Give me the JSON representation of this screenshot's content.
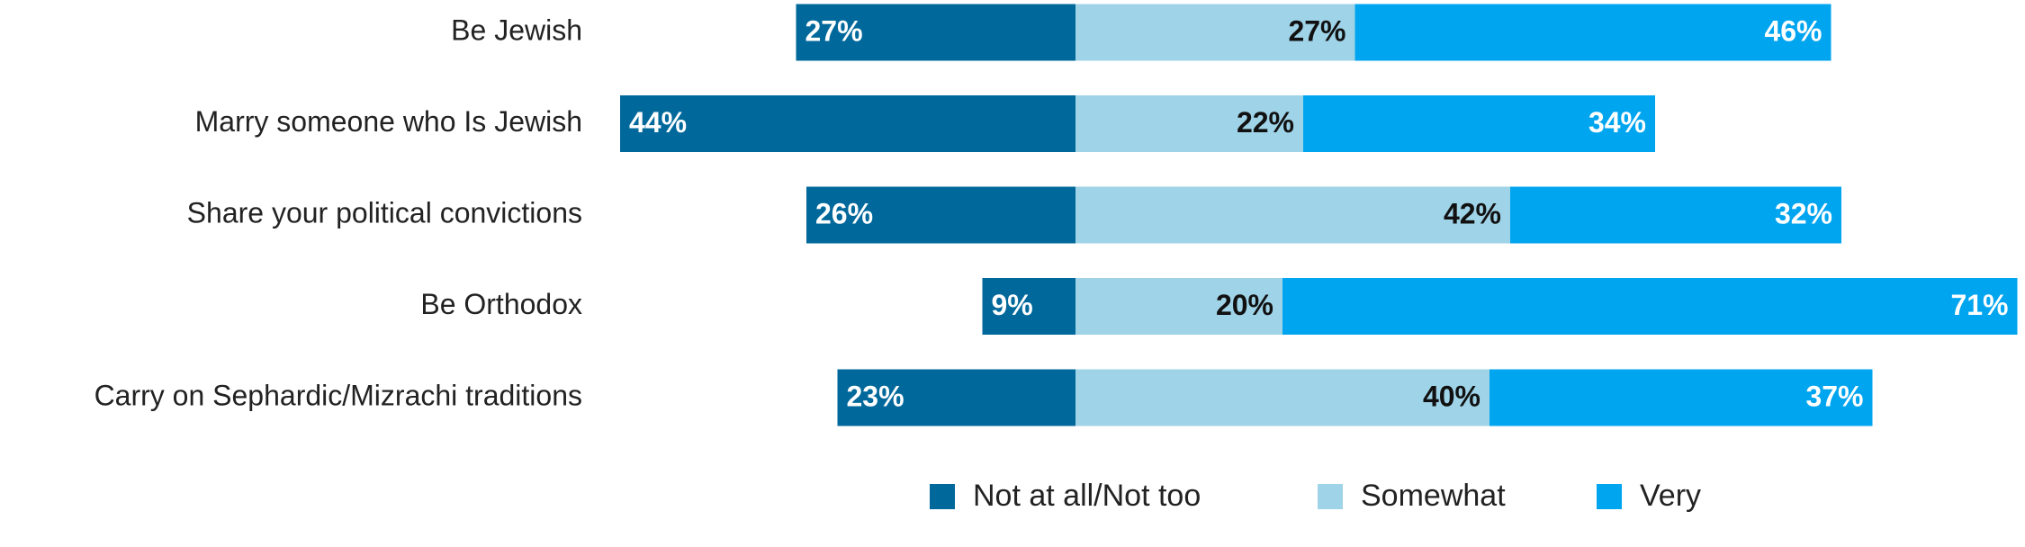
{
  "chart_data": {
    "type": "bar",
    "categories": [
      "Be Jewish",
      "Marry someone who Is Jewish",
      "Share your political convictions",
      "Be Orthodox",
      "Carry on Sephardic/Mizrachi traditions"
    ],
    "series": [
      {
        "name": "Not at all/Not too",
        "color": "#00689b",
        "values": [
          27,
          44,
          26,
          9,
          23
        ],
        "value_labels": [
          "27%",
          "44%",
          "26%",
          "9%",
          "23%"
        ]
      },
      {
        "name": "Somewhat",
        "color": "#9fd3e8",
        "values": [
          27,
          22,
          42,
          20,
          40
        ],
        "value_labels": [
          "27%",
          "22%",
          "42%",
          "20%",
          "40%"
        ]
      },
      {
        "name": "Very",
        "color": "#00a5f0",
        "values": [
          46,
          34,
          32,
          71,
          37
        ],
        "value_labels": [
          "46%",
          "34%",
          "32%",
          "71%",
          "37%"
        ]
      }
    ],
    "legend": "bottom"
  }
}
